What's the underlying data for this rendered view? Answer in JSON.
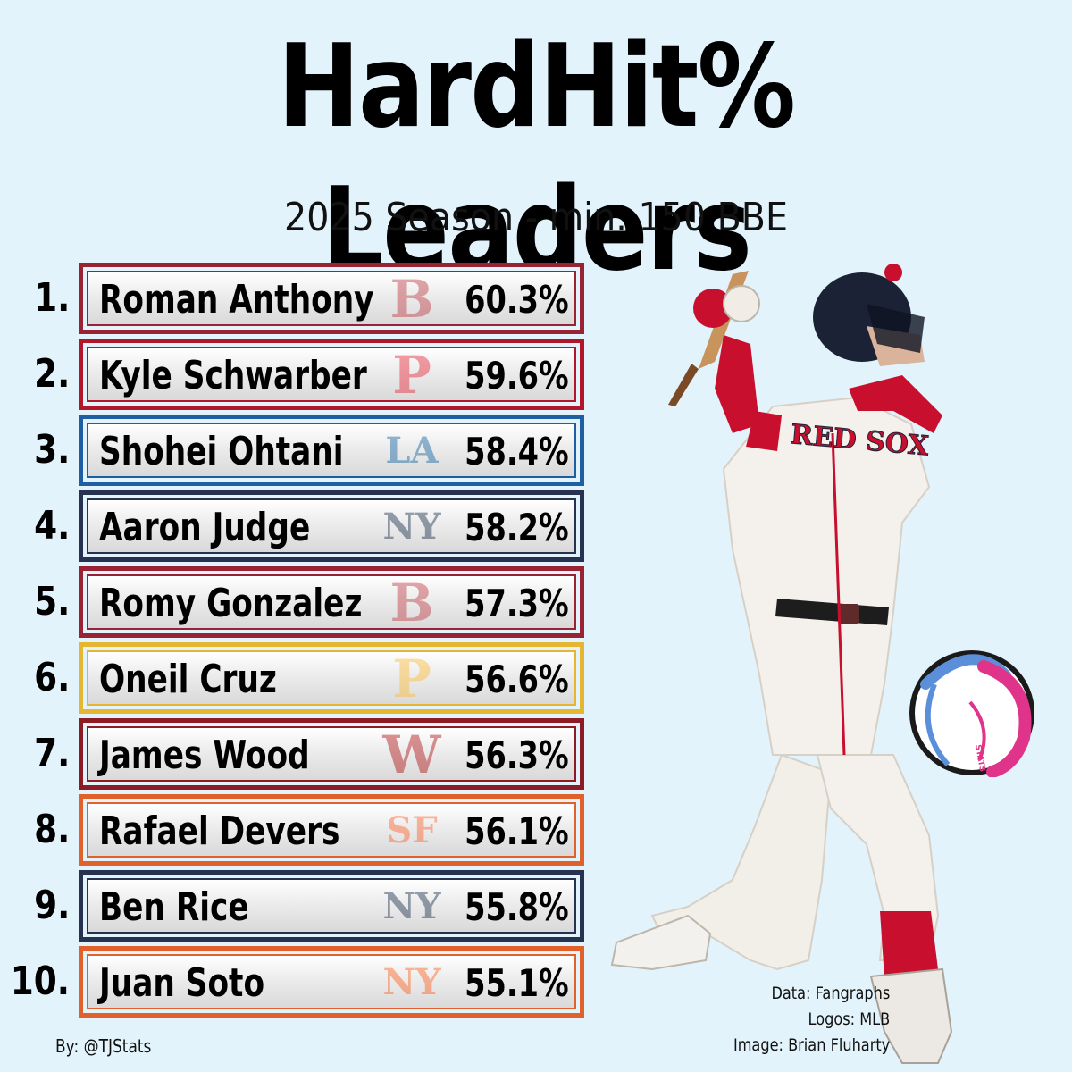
{
  "header": {
    "title": "HardHit% Leaders",
    "subtitle": "2025 Season - min. 150 BBE"
  },
  "leaders": [
    {
      "rank": "1.",
      "name": "Roman Anthony",
      "pct": "60.3%",
      "logo_icon": "red-sox-b-logo",
      "logo_glyph": "B",
      "logo_color": "#bd3039",
      "border_color": "#9a2333"
    },
    {
      "rank": "2.",
      "name": "Kyle Schwarber",
      "pct": "59.6%",
      "logo_icon": "phillies-p-logo",
      "logo_glyph": "P",
      "logo_color": "#e81828",
      "border_color": "#b0182a"
    },
    {
      "rank": "3.",
      "name": "Shohei Ohtani",
      "pct": "58.4%",
      "logo_icon": "dodgers-la-logo",
      "logo_glyph": "LA",
      "logo_color": "#005a9c",
      "border_color": "#1e5fa3"
    },
    {
      "rank": "4.",
      "name": "Aaron Judge",
      "pct": "58.2%",
      "logo_icon": "yankees-ny-logo",
      "logo_glyph": "NY",
      "logo_color": "#0c2340",
      "border_color": "#26324f"
    },
    {
      "rank": "5.",
      "name": "Romy Gonzalez",
      "pct": "57.3%",
      "logo_icon": "red-sox-b-logo",
      "logo_glyph": "B",
      "logo_color": "#bd3039",
      "border_color": "#9a2333"
    },
    {
      "rank": "6.",
      "name": "Oneil Cruz",
      "pct": "56.6%",
      "logo_icon": "pirates-p-logo",
      "logo_glyph": "P",
      "logo_color": "#fdb827",
      "border_color": "#e6b531"
    },
    {
      "rank": "7.",
      "name": "James Wood",
      "pct": "56.3%",
      "logo_icon": "nationals-w-logo",
      "logo_glyph": "W",
      "logo_color": "#ab0003",
      "border_color": "#8c1b24"
    },
    {
      "rank": "8.",
      "name": "Rafael Devers",
      "pct": "56.1%",
      "logo_icon": "giants-sf-logo",
      "logo_glyph": "SF",
      "logo_color": "#fd5a1e",
      "border_color": "#e0622a"
    },
    {
      "rank": "9.",
      "name": "Ben Rice",
      "pct": "55.8%",
      "logo_icon": "yankees-ny-logo",
      "logo_glyph": "NY",
      "logo_color": "#0c2340",
      "border_color": "#26324f"
    },
    {
      "rank": "10.",
      "name": "Juan Soto",
      "pct": "55.1%",
      "logo_icon": "mets-ny-logo",
      "logo_glyph": "NY",
      "logo_color": "#ff5910",
      "border_color": "#e0622a"
    }
  ],
  "footer": {
    "byline": "By: @TJStats",
    "credit_data": "Data: Fangraphs",
    "credit_logos": "Logos: MLB",
    "credit_image": "Image: Brian Fluharty"
  },
  "player_photo": {
    "jersey_text": "RED SOX",
    "colors": {
      "jersey": "#f4f1ec",
      "accent": "#c8102e",
      "helmet": "#1b2236"
    }
  },
  "stats_badge": {
    "label": "STATS",
    "colors": {
      "blue": "#5b8fd9",
      "pink": "#e0338a"
    }
  }
}
